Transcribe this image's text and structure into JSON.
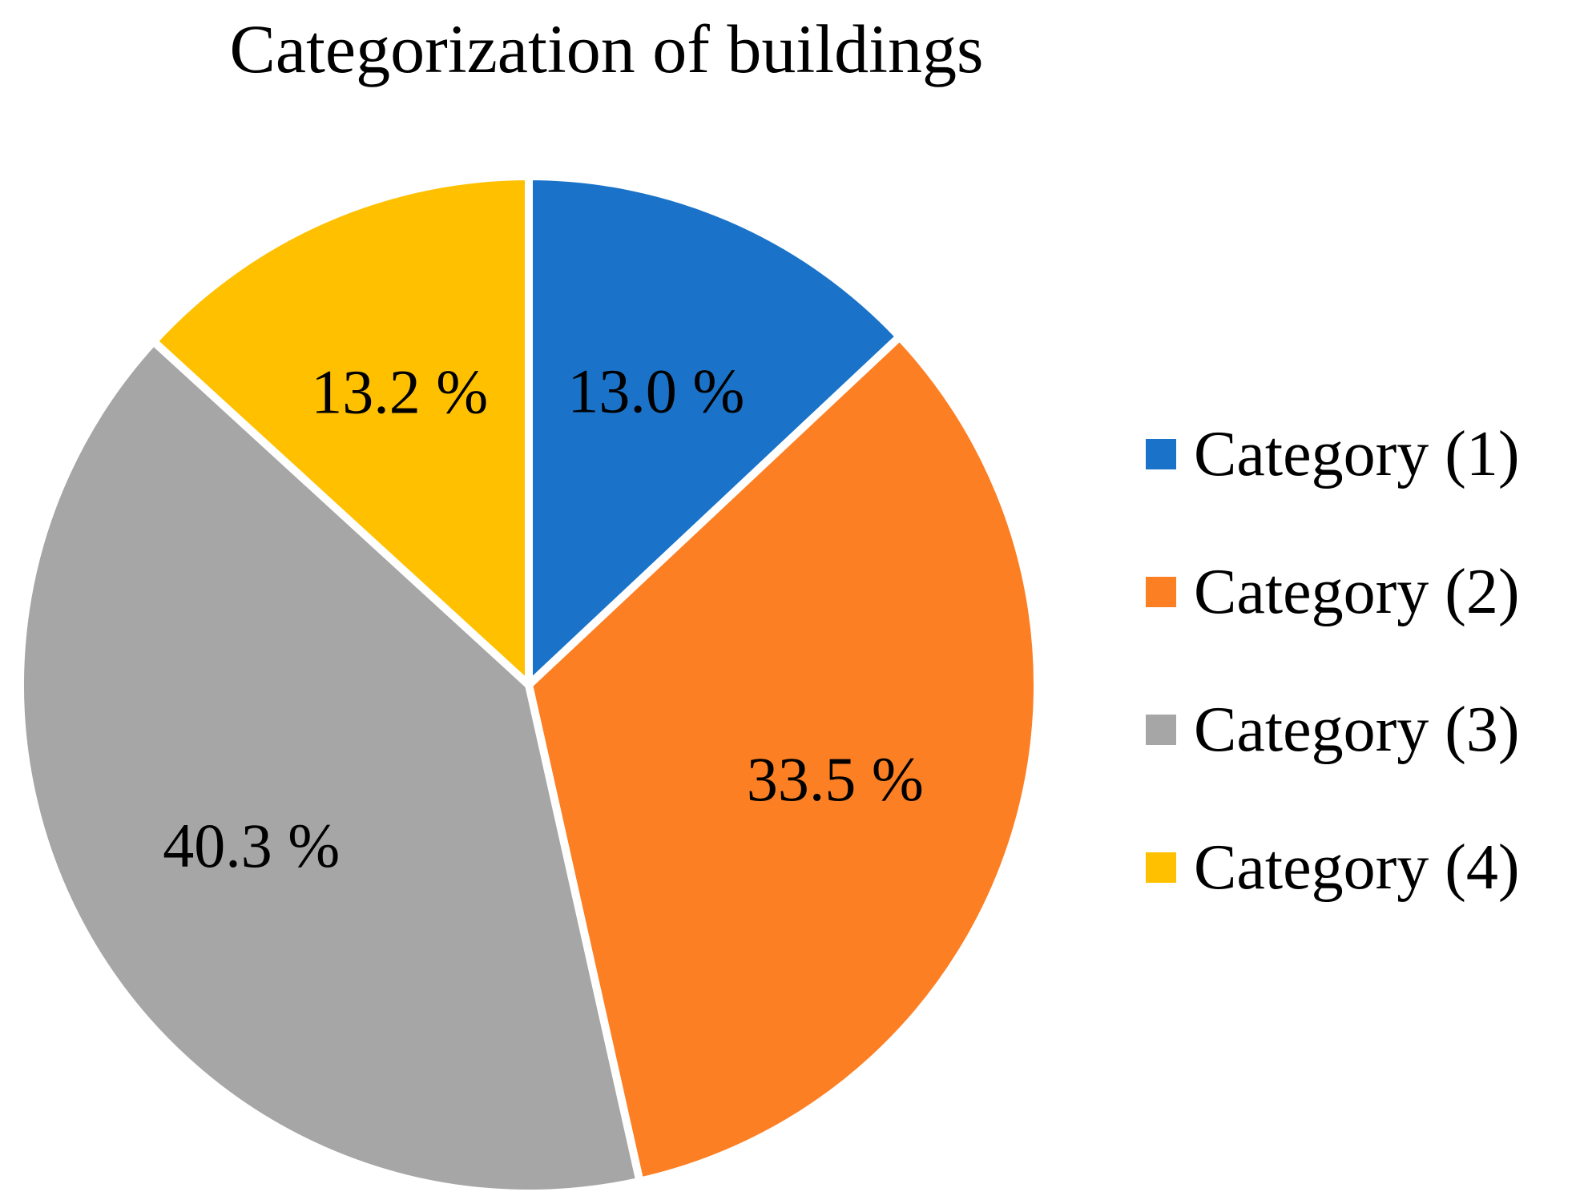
{
  "chart_data": {
    "type": "pie",
    "title": "Categorization of buildings",
    "categories": [
      "Category (1)",
      "Category (2)",
      "Category (3)",
      "Category (4)"
    ],
    "values": [
      13.0,
      33.5,
      40.3,
      13.2
    ],
    "value_labels": [
      "13.0 %",
      "33.5 %",
      "40.3 %",
      "13.2 %"
    ],
    "colors": [
      "#1a73c8",
      "#fd7f24",
      "#a6a6a6",
      "#ffc000"
    ],
    "start_angle": "12 o'clock",
    "direction": "clockwise",
    "legend_position": "right"
  }
}
